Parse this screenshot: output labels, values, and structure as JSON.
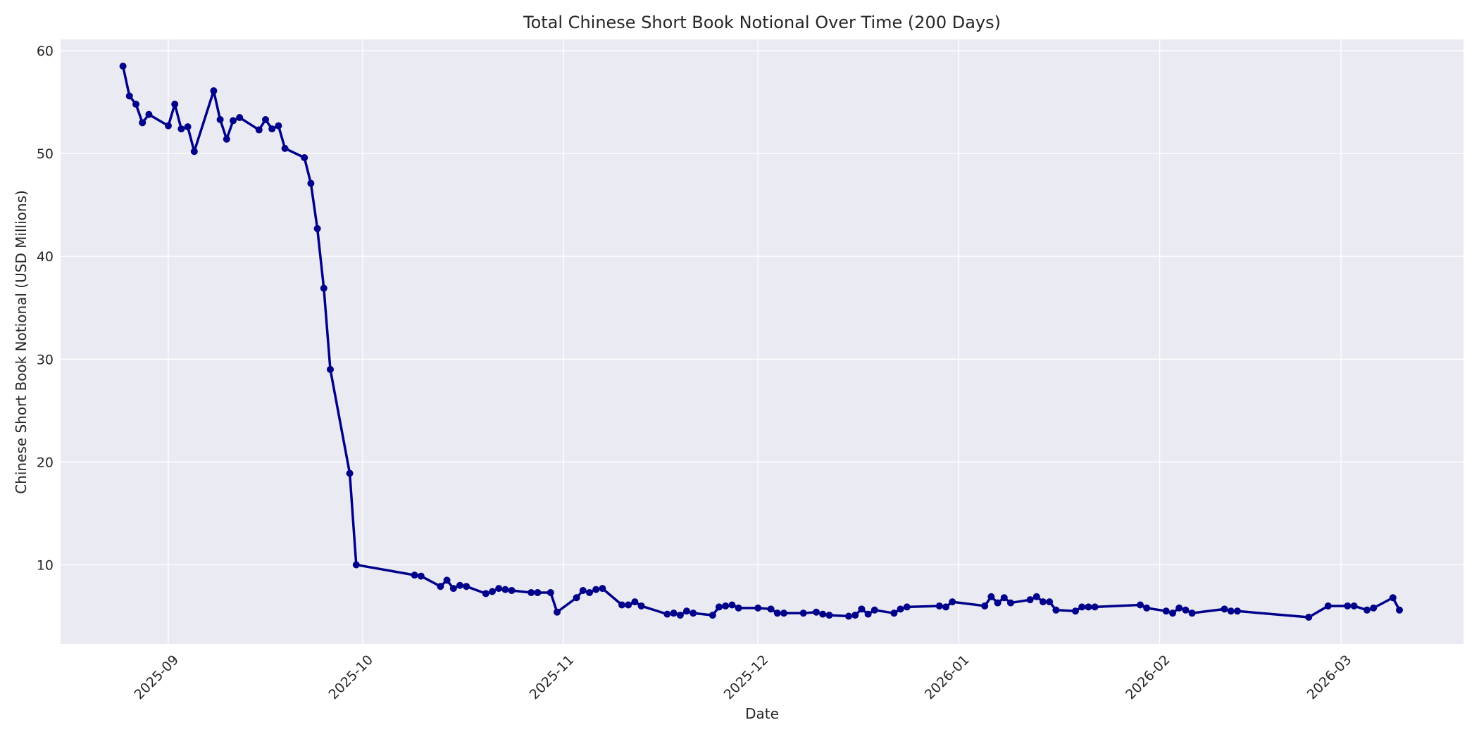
{
  "chart_data": {
    "type": "line",
    "title": "Total Chinese Short Book Notional Over Time (200 Days)",
    "xlabel": "Date",
    "ylabel": "Chinese Short Book Notional (USD Millions)",
    "ylim": [
      2.3,
      61.1
    ],
    "xlim": [
      "2025-08-15",
      "2026-03-20"
    ],
    "grid": true,
    "legend": null,
    "style": {
      "background": "#EAEAF2",
      "grid_color": "#FFFFFF",
      "line_color": "#00008B",
      "marker": "circle"
    },
    "yticks": [
      10,
      20,
      30,
      40,
      50,
      60
    ],
    "xticks": [
      "2025-09",
      "2025-10",
      "2025-11",
      "2025-12",
      "2026-01",
      "2026-02",
      "2026-03"
    ],
    "series": [
      {
        "name": "Total Chinese Short Book Notional",
        "points": [
          [
            "2025-08-25",
            58.5
          ],
          [
            "2025-08-26",
            55.6
          ],
          [
            "2025-08-27",
            54.8
          ],
          [
            "2025-08-28",
            53.0
          ],
          [
            "2025-08-29",
            53.8
          ],
          [
            "2025-09-01",
            52.7
          ],
          [
            "2025-09-02",
            54.8
          ],
          [
            "2025-09-03",
            52.4
          ],
          [
            "2025-09-04",
            52.6
          ],
          [
            "2025-09-05",
            50.2
          ],
          [
            "2025-09-08",
            56.1
          ],
          [
            "2025-09-09",
            53.3
          ],
          [
            "2025-09-10",
            51.4
          ],
          [
            "2025-09-11",
            53.2
          ],
          [
            "2025-09-12",
            53.5
          ],
          [
            "2025-09-15",
            52.3
          ],
          [
            "2025-09-16",
            53.3
          ],
          [
            "2025-09-17",
            52.4
          ],
          [
            "2025-09-18",
            52.7
          ],
          [
            "2025-09-19",
            50.5
          ],
          [
            "2025-09-22",
            49.6
          ],
          [
            "2025-09-23",
            47.1
          ],
          [
            "2025-09-24",
            42.7
          ],
          [
            "2025-09-25",
            36.9
          ],
          [
            "2025-09-26",
            29.0
          ],
          [
            "2025-09-29",
            18.9
          ],
          [
            "2025-09-30",
            10.0
          ],
          [
            "2025-10-09",
            9.0
          ],
          [
            "2025-10-10",
            8.9
          ],
          [
            "2025-10-13",
            7.9
          ],
          [
            "2025-10-14",
            8.5
          ],
          [
            "2025-10-15",
            7.7
          ],
          [
            "2025-10-16",
            8.0
          ],
          [
            "2025-10-17",
            7.9
          ],
          [
            "2025-10-20",
            7.2
          ],
          [
            "2025-10-21",
            7.4
          ],
          [
            "2025-10-22",
            7.7
          ],
          [
            "2025-10-23",
            7.6
          ],
          [
            "2025-10-24",
            7.5
          ],
          [
            "2025-10-27",
            7.3
          ],
          [
            "2025-10-28",
            7.3
          ],
          [
            "2025-10-30",
            7.3
          ],
          [
            "2025-10-31",
            5.4
          ],
          [
            "2025-11-03",
            6.8
          ],
          [
            "2025-11-04",
            7.5
          ],
          [
            "2025-11-05",
            7.3
          ],
          [
            "2025-11-06",
            7.6
          ],
          [
            "2025-11-07",
            7.7
          ],
          [
            "2025-11-10",
            6.1
          ],
          [
            "2025-11-11",
            6.1
          ],
          [
            "2025-11-12",
            6.4
          ],
          [
            "2025-11-13",
            6.0
          ],
          [
            "2025-11-17",
            5.2
          ],
          [
            "2025-11-18",
            5.3
          ],
          [
            "2025-11-19",
            5.1
          ],
          [
            "2025-11-20",
            5.5
          ],
          [
            "2025-11-21",
            5.3
          ],
          [
            "2025-11-24",
            5.1
          ],
          [
            "2025-11-25",
            5.9
          ],
          [
            "2025-11-26",
            6.0
          ],
          [
            "2025-11-27",
            6.1
          ],
          [
            "2025-11-28",
            5.8
          ],
          [
            "2025-12-01",
            5.8
          ],
          [
            "2025-12-03",
            5.7
          ],
          [
            "2025-12-04",
            5.3
          ],
          [
            "2025-12-05",
            5.3
          ],
          [
            "2025-12-08",
            5.3
          ],
          [
            "2025-12-10",
            5.4
          ],
          [
            "2025-12-11",
            5.2
          ],
          [
            "2025-12-12",
            5.1
          ],
          [
            "2025-12-15",
            5.0
          ],
          [
            "2025-12-16",
            5.1
          ],
          [
            "2025-12-17",
            5.7
          ],
          [
            "2025-12-18",
            5.2
          ],
          [
            "2025-12-19",
            5.6
          ],
          [
            "2025-12-22",
            5.3
          ],
          [
            "2025-12-23",
            5.7
          ],
          [
            "2025-12-24",
            5.9
          ],
          [
            "2025-12-29",
            6.0
          ],
          [
            "2025-12-30",
            5.9
          ],
          [
            "2025-12-31",
            6.4
          ],
          [
            "2026-01-05",
            6.0
          ],
          [
            "2026-01-06",
            6.9
          ],
          [
            "2026-01-07",
            6.3
          ],
          [
            "2026-01-08",
            6.8
          ],
          [
            "2026-01-09",
            6.3
          ],
          [
            "2026-01-12",
            6.6
          ],
          [
            "2026-01-13",
            6.9
          ],
          [
            "2026-01-14",
            6.4
          ],
          [
            "2026-01-15",
            6.4
          ],
          [
            "2026-01-16",
            5.6
          ],
          [
            "2026-01-19",
            5.5
          ],
          [
            "2026-01-20",
            5.9
          ],
          [
            "2026-01-21",
            5.9
          ],
          [
            "2026-01-22",
            5.9
          ],
          [
            "2026-01-29",
            6.1
          ],
          [
            "2026-01-30",
            5.8
          ],
          [
            "2026-02-02",
            5.5
          ],
          [
            "2026-02-03",
            5.3
          ],
          [
            "2026-02-04",
            5.8
          ],
          [
            "2026-02-05",
            5.6
          ],
          [
            "2026-02-06",
            5.3
          ],
          [
            "2026-02-11",
            5.7
          ],
          [
            "2026-02-12",
            5.5
          ],
          [
            "2026-02-13",
            5.5
          ],
          [
            "2026-02-24",
            4.9
          ],
          [
            "2026-02-27",
            6.0
          ],
          [
            "2026-03-02",
            6.0
          ],
          [
            "2026-03-03",
            6.0
          ],
          [
            "2026-03-05",
            5.6
          ],
          [
            "2026-03-06",
            5.8
          ],
          [
            "2026-03-09",
            6.8
          ],
          [
            "2026-03-10",
            5.6
          ]
        ]
      }
    ]
  }
}
